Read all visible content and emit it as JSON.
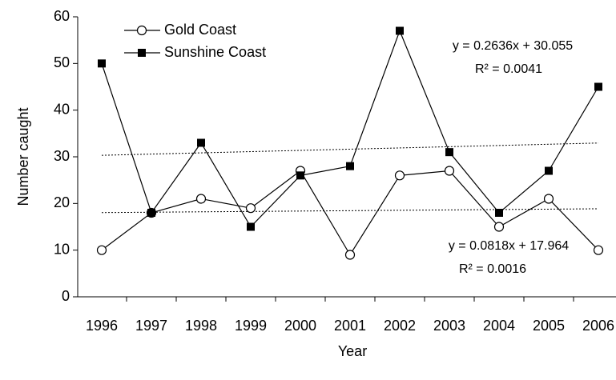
{
  "chart_data": {
    "type": "line",
    "x_label": "Year",
    "y_label": "Number caught",
    "categories": [
      "1996",
      "1997",
      "1998",
      "1999",
      "2000",
      "2001",
      "2002",
      "2003",
      "2004",
      "2005",
      "2006"
    ],
    "series": [
      {
        "name": "Gold Coast",
        "color": "#000000",
        "marker": "open-circle",
        "values": [
          10,
          18,
          21,
          19,
          27,
          9,
          26,
          27,
          15,
          21,
          10
        ]
      },
      {
        "name": "Sunshine Coast",
        "color": "#000000",
        "marker": "filled-square",
        "values": [
          50,
          18,
          33,
          15,
          26,
          28,
          57,
          31,
          18,
          27,
          45
        ]
      }
    ],
    "trendlines": [
      {
        "equation": "y = 0.0818x + 17.964",
        "r2": "R² = 0.0016",
        "slope": 0.0818,
        "intercept": 17.964
      },
      {
        "equation": "y = 0.2636x + 30.055",
        "r2": "R² = 0.0041",
        "slope": 0.2636,
        "intercept": 30.055
      }
    ],
    "ylim": [
      0,
      60
    ],
    "yticks": [
      0,
      10,
      20,
      30,
      40,
      50,
      60
    ],
    "grid": false,
    "legend": "top-left"
  }
}
